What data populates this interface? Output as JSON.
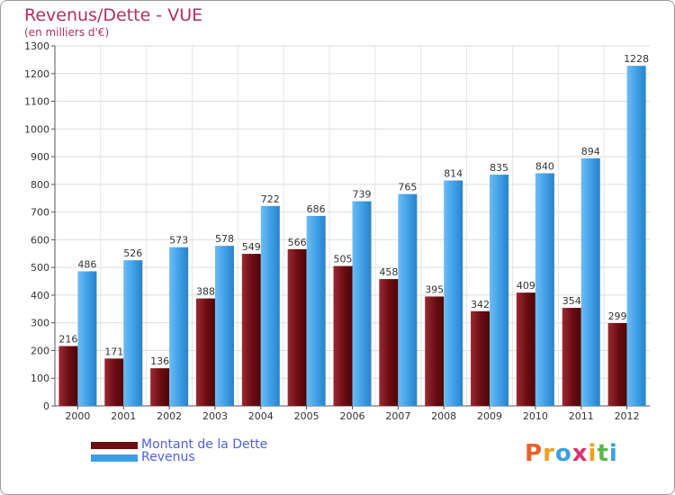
{
  "header": {
    "title": "Revenus/Dette - VUE",
    "subtitle": "(en milliers d'€)"
  },
  "legend": {
    "items": [
      {
        "label": "Montant de la Dette",
        "color": "#6b0c12"
      },
      {
        "label": "Revenus",
        "color": "#3d9ee6"
      }
    ]
  },
  "logo": {
    "letters": [
      "P",
      "r",
      "o",
      "x",
      "i",
      "t",
      "i"
    ],
    "colors": [
      "#e8622a",
      "#f0a020",
      "#3aa0e0",
      "#e03070",
      "#f0a020",
      "#5ab84a",
      "#3aa0e0"
    ]
  },
  "chart_data": {
    "type": "bar",
    "title": "Revenus/Dette - VUE",
    "subtitle": "(en milliers d'€)",
    "xlabel": "",
    "ylabel": "",
    "ylim": [
      0,
      1300
    ],
    "yticks": [
      0,
      100,
      200,
      300,
      400,
      500,
      600,
      700,
      800,
      900,
      1000,
      1100,
      1200,
      1300
    ],
    "grid": true,
    "categories": [
      "2000",
      "2001",
      "2002",
      "2003",
      "2004",
      "2005",
      "2006",
      "2007",
      "2008",
      "2009",
      "2010",
      "2011",
      "2012"
    ],
    "series": [
      {
        "name": "Montant de la Dette",
        "color": "#6b0c12",
        "values": [
          216,
          171,
          136,
          388,
          549,
          566,
          505,
          458,
          395,
          342,
          409,
          354,
          299
        ]
      },
      {
        "name": "Revenus",
        "color": "#3d9ee6",
        "values": [
          486,
          526,
          573,
          578,
          722,
          686,
          739,
          765,
          814,
          835,
          840,
          894,
          1228
        ]
      }
    ]
  }
}
